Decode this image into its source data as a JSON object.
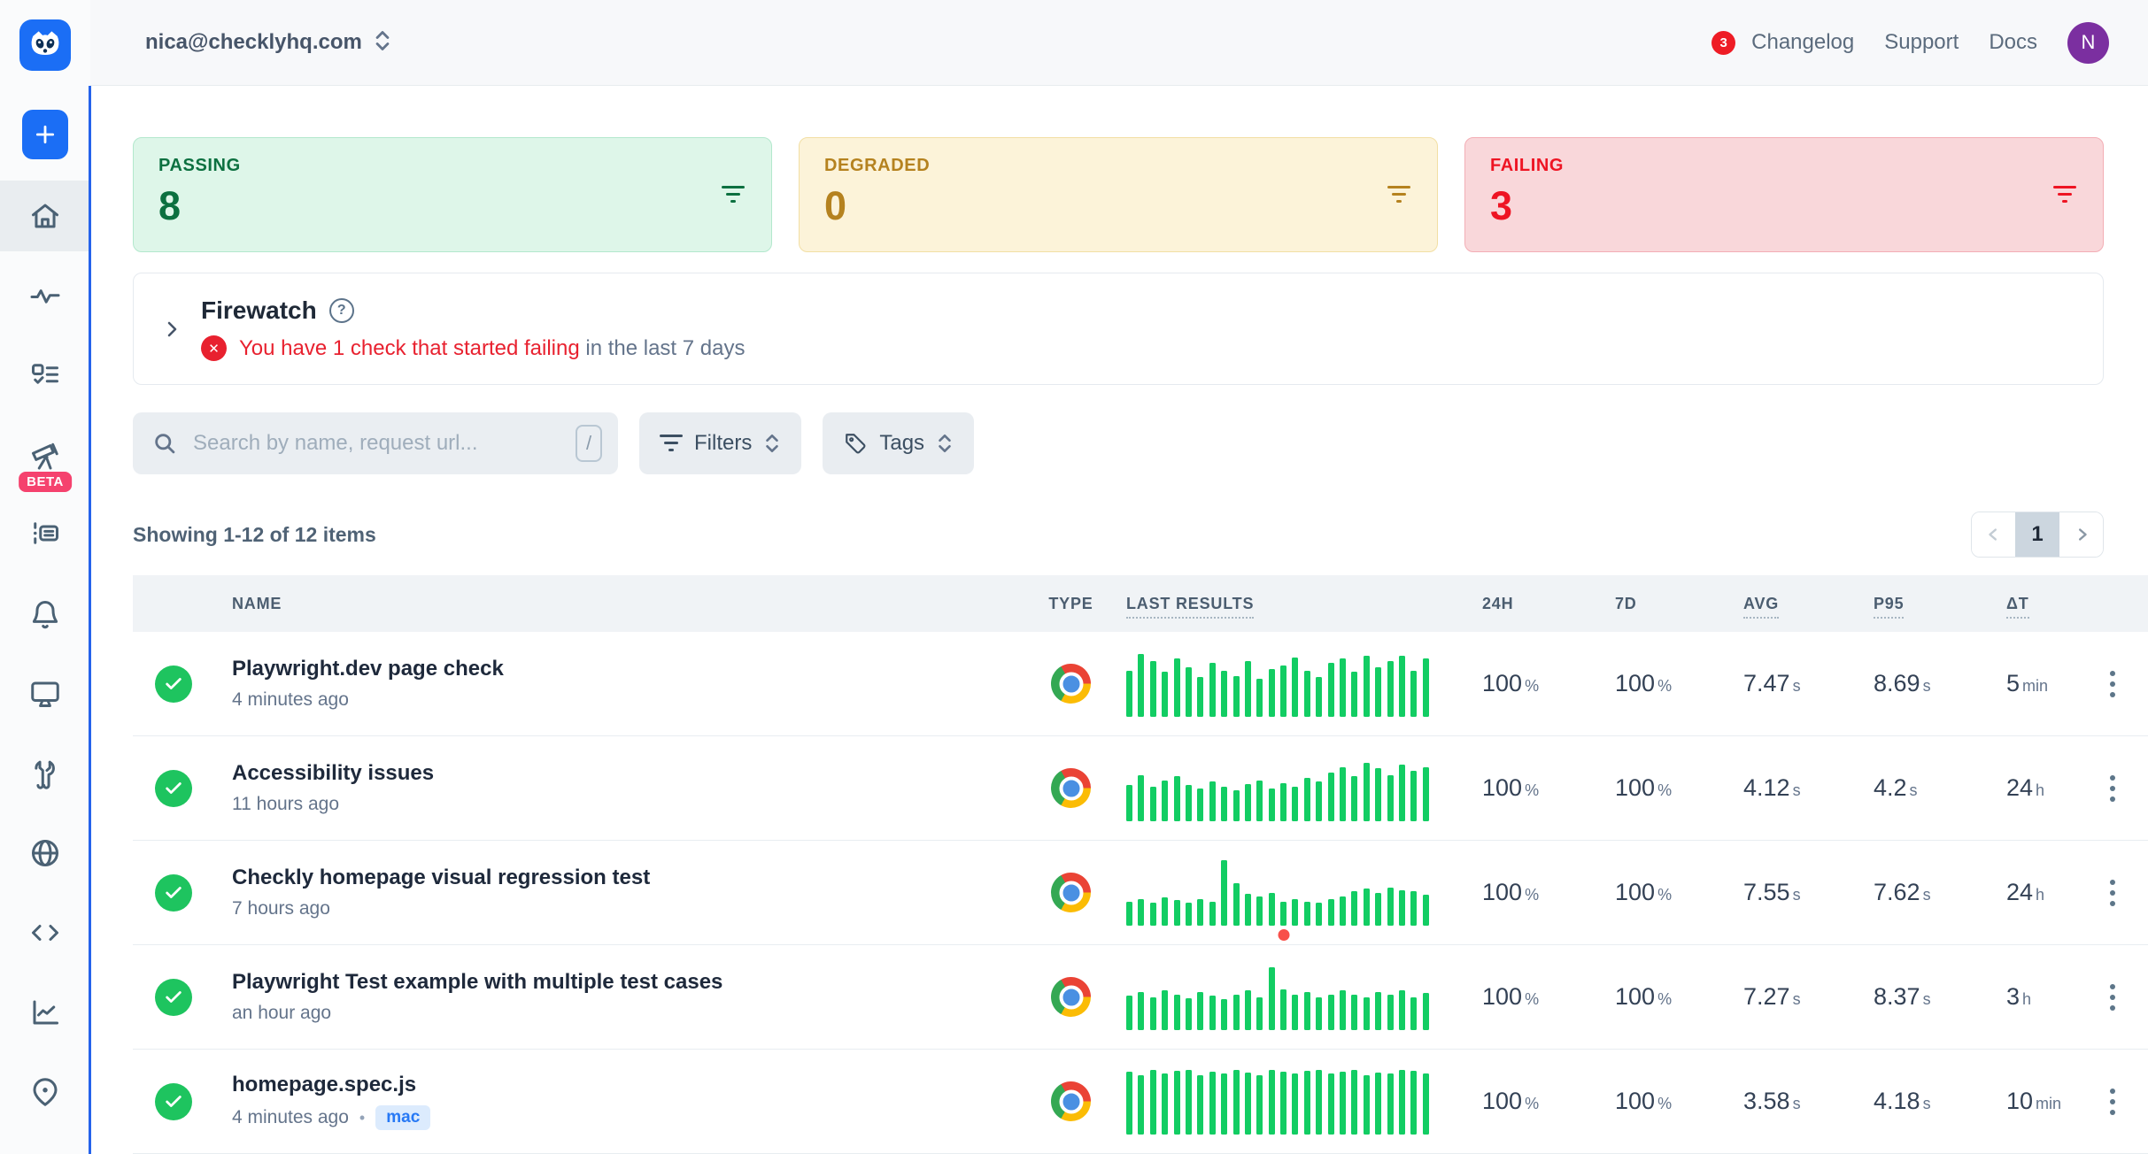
{
  "header": {
    "account_email": "nica@checklyhq.com",
    "changelog_count": "3",
    "nav": [
      {
        "label": "Changelog"
      },
      {
        "label": "Support"
      },
      {
        "label": "Docs"
      }
    ],
    "avatar_initial": "N"
  },
  "sidebar": {
    "beta_badge": "BETA",
    "items": [
      {
        "icon": "plus-icon",
        "name": "create"
      },
      {
        "icon": "home-icon",
        "name": "home",
        "active": true
      },
      {
        "icon": "pulse-icon",
        "name": "activity"
      },
      {
        "icon": "checklist-icon",
        "name": "checks"
      },
      {
        "icon": "telescope-icon",
        "name": "explore",
        "beta": true
      },
      {
        "icon": "log-list-icon",
        "name": "groups"
      },
      {
        "icon": "bell-icon",
        "name": "alerts"
      },
      {
        "icon": "monitor-icon",
        "name": "dashboards"
      },
      {
        "icon": "wrench-icon",
        "name": "maintenance"
      },
      {
        "icon": "globe-icon",
        "name": "locations"
      },
      {
        "icon": "code-icon",
        "name": "cli"
      },
      {
        "icon": "line-chart-icon",
        "name": "insights"
      },
      {
        "icon": "map-pin-icon",
        "name": "private-locations"
      }
    ]
  },
  "status_cards": [
    {
      "label": "PASSING",
      "count": "8",
      "color": "#0c7040"
    },
    {
      "label": "DEGRADED",
      "count": "0",
      "color": "#b5821f"
    },
    {
      "label": "FAILING",
      "count": "3",
      "color": "#ee1423"
    }
  ],
  "firewatch": {
    "title": "Firewatch",
    "message_highlight": "You have 1 check that started failing",
    "message_rest": " in the last 7 days"
  },
  "toolbar": {
    "search_placeholder": "Search by name, request url...",
    "search_shortcut": "/",
    "filters_label": "Filters",
    "tags_label": "Tags"
  },
  "listbar": {
    "showing": "Showing 1-12 of 12 items",
    "current_page": "1"
  },
  "table": {
    "columns": [
      {
        "label": "NAME",
        "underlined": false
      },
      {
        "label": "TYPE",
        "underlined": false
      },
      {
        "label": "LAST RESULTS",
        "underlined": true
      },
      {
        "label": "24H",
        "underlined": false
      },
      {
        "label": "7D",
        "underlined": false
      },
      {
        "label": "AVG",
        "underlined": true
      },
      {
        "label": "P95",
        "underlined": true
      },
      {
        "label": "ΔT",
        "underlined": true
      }
    ],
    "rows": [
      {
        "name": "Playwright.dev page check",
        "time": "4 minutes ago",
        "badge": null,
        "type": "chrome-browser-check",
        "status": "passing",
        "bars": [
          70,
          95,
          85,
          68,
          88,
          75,
          60,
          82,
          70,
          62,
          85,
          58,
          72,
          78,
          90,
          70,
          60,
          82,
          88,
          68,
          92,
          75,
          85,
          92,
          70,
          88
        ],
        "fail_dot_index": null,
        "stats": {
          "h24": {
            "v": "100",
            "u": "%"
          },
          "d7": {
            "v": "100",
            "u": "%"
          },
          "avg": {
            "v": "7.47",
            "u": "s"
          },
          "p95": {
            "v": "8.69",
            "u": "s"
          },
          "dt": {
            "v": "5",
            "u": "min"
          }
        }
      },
      {
        "name": "Accessibility issues",
        "time": "11 hours ago",
        "badge": null,
        "type": "chrome-browser-check",
        "status": "passing",
        "bars": [
          55,
          70,
          52,
          62,
          68,
          55,
          50,
          60,
          52,
          46,
          56,
          62,
          50,
          58,
          52,
          66,
          60,
          74,
          82,
          68,
          88,
          80,
          70,
          86,
          76,
          82
        ],
        "fail_dot_index": null,
        "stats": {
          "h24": {
            "v": "100",
            "u": "%"
          },
          "d7": {
            "v": "100",
            "u": "%"
          },
          "avg": {
            "v": "4.12",
            "u": "s"
          },
          "p95": {
            "v": "4.2",
            "u": "s"
          },
          "dt": {
            "v": "24",
            "u": "h"
          }
        }
      },
      {
        "name": "Checkly homepage visual regression test",
        "time": "7 hours ago",
        "badge": null,
        "type": "chrome-browser-check",
        "status": "passing",
        "bars": [
          36,
          40,
          34,
          42,
          38,
          34,
          40,
          36,
          100,
          64,
          48,
          44,
          50,
          36,
          40,
          36,
          34,
          40,
          44,
          52,
          56,
          50,
          58,
          54,
          52,
          46
        ],
        "fail_dot_index": 13,
        "stats": {
          "h24": {
            "v": "100",
            "u": "%"
          },
          "d7": {
            "v": "100",
            "u": "%"
          },
          "avg": {
            "v": "7.55",
            "u": "s"
          },
          "p95": {
            "v": "7.62",
            "u": "s"
          },
          "dt": {
            "v": "24",
            "u": "h"
          }
        }
      },
      {
        "name": "Playwright Test example with multiple test cases",
        "time": "an hour ago",
        "badge": null,
        "type": "chrome-browser-check",
        "status": "passing",
        "bars": [
          52,
          58,
          50,
          60,
          54,
          48,
          58,
          52,
          46,
          54,
          60,
          50,
          95,
          62,
          54,
          58,
          50,
          54,
          60,
          54,
          50,
          58,
          54,
          60,
          50,
          56
        ],
        "fail_dot_index": null,
        "stats": {
          "h24": {
            "v": "100",
            "u": "%"
          },
          "d7": {
            "v": "100",
            "u": "%"
          },
          "avg": {
            "v": "7.27",
            "u": "s"
          },
          "p95": {
            "v": "8.37",
            "u": "s"
          },
          "dt": {
            "v": "3",
            "u": "h"
          }
        }
      },
      {
        "name": "homepage.spec.js",
        "time": "4 minutes ago",
        "badge": "mac",
        "type": "chrome-browser-check",
        "status": "passing",
        "bars": [
          95,
          90,
          98,
          92,
          96,
          98,
          90,
          95,
          92,
          98,
          94,
          90,
          98,
          95,
          92,
          96,
          98,
          92,
          95,
          98,
          90,
          94,
          92,
          98,
          96,
          92
        ],
        "fail_dot_index": null,
        "stats": {
          "h24": {
            "v": "100",
            "u": "%"
          },
          "d7": {
            "v": "100",
            "u": "%"
          },
          "avg": {
            "v": "3.58",
            "u": "s"
          },
          "p95": {
            "v": "4.18",
            "u": "s"
          },
          "dt": {
            "v": "10",
            "u": "min"
          }
        }
      }
    ]
  },
  "colors": {
    "brand_blue": "#1b6ef5",
    "passing_green": "#0c7040",
    "degraded_amber": "#b5821f",
    "failing_red": "#ee1423",
    "bar_green": "#12cd63",
    "fail_dot_red": "#f8504a",
    "status_circle_green": "#1ec45f",
    "avatar_purple": "#7b2fa0",
    "beta_pink": "#f5426e",
    "mac_badge_blue": "#2779f5"
  }
}
